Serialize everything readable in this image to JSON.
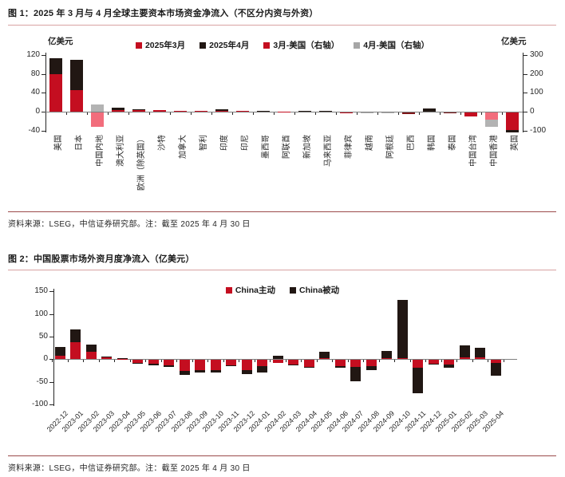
{
  "figure1": {
    "title": "图 1：2025 年 3 月与 4 月全球主要资本市场资金净流入（不区分内资与外资）",
    "unit_left": "亿美元",
    "unit_right": "亿美元",
    "legend": [
      {
        "label": "2025年3月",
        "color": "red"
      },
      {
        "label": "2025年4月",
        "color": "black"
      },
      {
        "label": "3月-美国（右轴）",
        "color": "red"
      },
      {
        "label": "4月-美国（右轴）",
        "color": "legend_gray"
      }
    ],
    "source": "资料来源：LSEG，中信证券研究部。注：截至 2025 年 4 月 30 日"
  },
  "figure2": {
    "title": "图 2：中国股票市场外资月度净流入（亿美元）",
    "legend": [
      {
        "label": "China主动",
        "color": "red"
      },
      {
        "label": "China被动",
        "color": "black"
      }
    ],
    "source": "资料来源：LSEG，中信证券研究部。注：截至 2025 年 4 月 30 日"
  },
  "palette": {
    "red": "#c40e20",
    "black": "#211713",
    "pink": "#f26d7c",
    "gray": "#b3b3b3",
    "darkred": "#7d1417",
    "legend_gray": "#a6a6a6"
  },
  "chart_data": [
    {
      "type": "bar",
      "title": "2025年3月与4月全球主要资本市场资金净流入（不区分内资与外资）",
      "ylabel_left": "亿美元",
      "ylabel_right": "亿美元",
      "left_ticks": [
        120,
        80,
        40,
        0,
        -40
      ],
      "right_ticks": [
        300,
        200,
        100,
        0,
        -100
      ],
      "left_axis_range": [
        -45,
        120
      ],
      "right_axis_range": [
        -112,
        300
      ],
      "us_right_axis_values": {
        "2025-03": 200,
        "2025-04": 83
      },
      "categories": [
        "美国",
        "日本",
        "中国内地",
        "澳大利亚",
        "欧洲（除英国）",
        "沙特",
        "加拿大",
        "智利",
        "印度",
        "印尼",
        "墨西哥",
        "阿联酋",
        "新加坡",
        "马来西亚",
        "菲律宾",
        "越南",
        "阿根廷",
        "巴西",
        "韩国",
        "泰国",
        "中国台湾",
        "中国香港",
        "英国"
      ],
      "bars": [
        {
          "pos": [
            [
              "red",
              80
            ],
            [
              "black",
              33
            ]
          ],
          "neg": []
        },
        {
          "pos": [
            [
              "red",
              45
            ],
            [
              "black",
              65
            ]
          ],
          "neg": []
        },
        {
          "pos": [
            [
              "gray",
              15
            ]
          ],
          "neg": [
            [
              "pink",
              30
            ]
          ]
        },
        {
          "pos": [
            [
              "red",
              4
            ],
            [
              "black",
              4
            ]
          ],
          "neg": []
        },
        {
          "pos": [
            [
              "red",
              4
            ],
            [
              "black",
              1.5
            ]
          ],
          "neg": []
        },
        {
          "pos": [
            [
              "red",
              3
            ]
          ],
          "neg": []
        },
        {
          "pos": [
            [
              "red",
              2.5
            ]
          ],
          "neg": []
        },
        {
          "pos": [
            [
              "red",
              1.5
            ]
          ],
          "neg": []
        },
        {
          "pos": [
            [
              "red",
              1
            ],
            [
              "black",
              3.5
            ]
          ],
          "neg": []
        },
        {
          "pos": [
            [
              "red",
              1.5
            ]
          ],
          "neg": []
        },
        {
          "pos": [
            [
              "black",
              2
            ]
          ],
          "neg": []
        },
        {
          "pos": [
            [
              "red",
              0.7
            ]
          ],
          "neg": []
        },
        {
          "pos": [
            [
              "black",
              2
            ]
          ],
          "neg": []
        },
        {
          "pos": [
            [
              "black",
              1
            ]
          ],
          "neg": []
        },
        {
          "pos": [],
          "neg": [
            [
              "red",
              1.5
            ]
          ]
        },
        {
          "pos": [],
          "neg": [
            [
              "gray",
              2
            ]
          ]
        },
        {
          "pos": [],
          "neg": [
            [
              "gray",
              1.5
            ]
          ]
        },
        {
          "pos": [],
          "neg": [
            [
              "darkred",
              3
            ]
          ]
        },
        {
          "pos": [
            [
              "black",
              6
            ]
          ],
          "neg": []
        },
        {
          "pos": [],
          "neg": [
            [
              "darkred",
              2
            ]
          ]
        },
        {
          "pos": [],
          "neg": [
            [
              "red",
              8
            ]
          ]
        },
        {
          "pos": [],
          "neg": [
            [
              "pink",
              16
            ],
            [
              "gray",
              15
            ]
          ]
        },
        {
          "pos": [],
          "neg": [
            [
              "red",
              38
            ],
            [
              "black",
              4
            ]
          ]
        }
      ]
    },
    {
      "type": "bar",
      "stacked": true,
      "title": "中国股票市场外资月度净流入（亿美元）",
      "yticks": [
        150,
        100,
        50,
        0,
        -50,
        -100
      ],
      "ylim": [
        -100,
        150
      ],
      "categories": [
        "2022-12",
        "2023-01",
        "2023-02",
        "2023-03",
        "2023-04",
        "2023-05",
        "2023-06",
        "2023-07",
        "2023-08",
        "2023-09",
        "2023-10",
        "2023-11",
        "2023-12",
        "2024-01",
        "2024-02",
        "2024-03",
        "2024-04",
        "2024-05",
        "2024-06",
        "2024-07",
        "2024-08",
        "2024-09",
        "2024-10",
        "2024-11",
        "2024-12",
        "2025-01",
        "2025-02",
        "2025-03",
        "2025-04"
      ],
      "series": [
        {
          "name": "China主动",
          "color": "red",
          "values": [
            7,
            38,
            16,
            4,
            1,
            -6,
            -8,
            -11,
            -24,
            -23,
            -22,
            -11,
            -22,
            -14,
            -7,
            -10,
            -16,
            2,
            -13,
            -16,
            -14,
            3,
            3,
            -17,
            -8,
            -10,
            4,
            4,
            -7
          ]
        },
        {
          "name": "China被动",
          "color": "black",
          "values": [
            20,
            28,
            16,
            2,
            1,
            -1,
            -3,
            -4,
            -9,
            -4,
            -6,
            -2,
            -9,
            -14,
            7,
            -2,
            -2,
            14,
            -5,
            -32,
            -9,
            16,
            129,
            -57,
            -2,
            -8,
            27,
            22,
            -28
          ]
        }
      ]
    }
  ]
}
